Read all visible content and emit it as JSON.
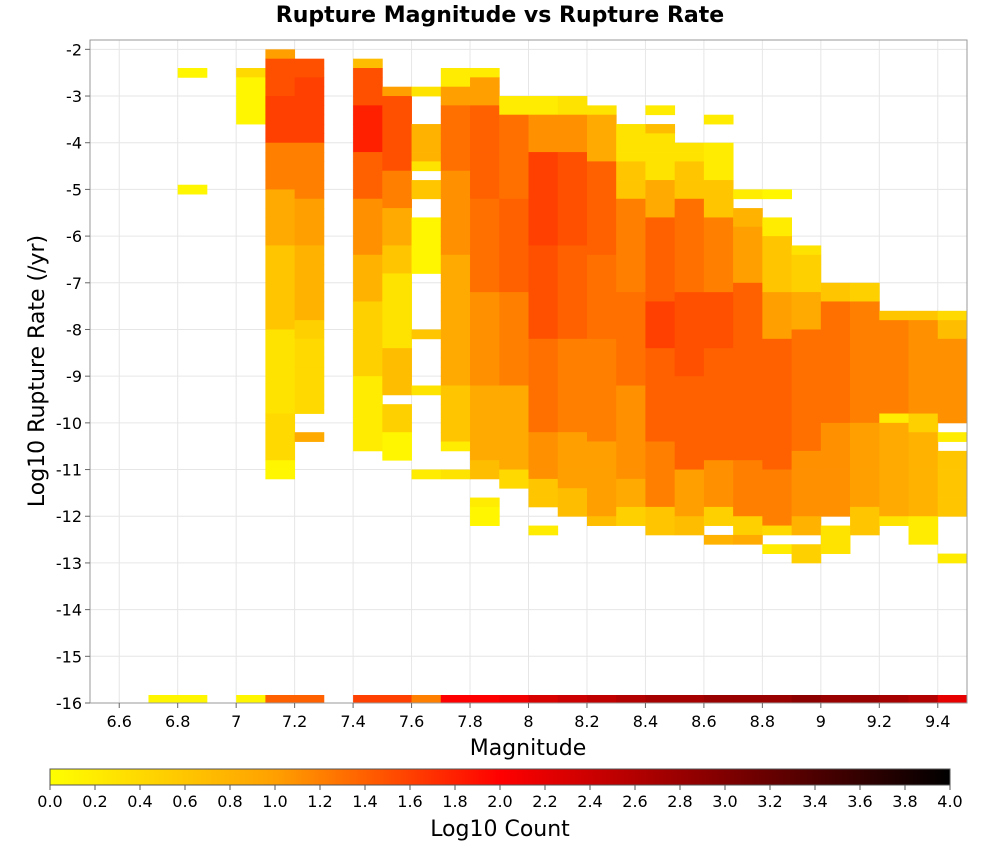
{
  "chart_data": {
    "type": "heatmap",
    "title": "Rupture Magnitude vs Rupture Rate",
    "xlabel": "Magnitude",
    "ylabel": "Log10 Rupture Rate (/yr)",
    "xlim": [
      6.5,
      9.5
    ],
    "ylim": [
      -16,
      -1.8
    ],
    "grid": true,
    "bin_width": 0.1,
    "bin_height": 0.2,
    "x_ticks": [
      6.6,
      6.8,
      7.0,
      7.2,
      7.4,
      7.6,
      7.8,
      8.0,
      8.2,
      8.4,
      8.6,
      8.8,
      9.0,
      9.2,
      9.4
    ],
    "x_tick_labels": [
      "6.6",
      "6.8",
      "7",
      "7.2",
      "7.4",
      "7.6",
      "7.8",
      "8",
      "8.2",
      "8.4",
      "8.6",
      "8.8",
      "9",
      "9.2",
      "9.4"
    ],
    "y_ticks": [
      -2,
      -3,
      -4,
      -5,
      -6,
      -7,
      -8,
      -9,
      -10,
      -11,
      -12,
      -13,
      -14,
      -15,
      -16
    ],
    "y_tick_labels": [
      "-2",
      "-3",
      "-4",
      "-5",
      "-6",
      "-7",
      "-8",
      "-9",
      "-10",
      "-11",
      "-12",
      "-13",
      "-14",
      "-15",
      "-16"
    ],
    "colorbar": {
      "label": "Log10 Count",
      "range": [
        0.0,
        4.0
      ],
      "ticks": [
        "0.0",
        "0.2",
        "0.4",
        "0.6",
        "0.8",
        "1.0",
        "1.2",
        "1.4",
        "1.6",
        "1.8",
        "2.0",
        "2.2",
        "2.4",
        "2.6",
        "2.8",
        "3.0",
        "3.2",
        "3.4",
        "3.6",
        "3.8",
        "4.0"
      ],
      "colors": [
        "#ffff00",
        "#ffa000",
        "#ff0000",
        "#800000",
        "#000000"
      ]
    },
    "bottom_row": {
      "y": -16,
      "cells": [
        {
          "x": 6.75,
          "v": 0.1
        },
        {
          "x": 6.85,
          "v": 0.1
        },
        {
          "x": 7.05,
          "v": 0.1
        },
        {
          "x": 7.15,
          "v": 1.4
        },
        {
          "x": 7.25,
          "v": 1.4
        },
        {
          "x": 7.45,
          "v": 1.6
        },
        {
          "x": 7.55,
          "v": 1.6
        },
        {
          "x": 7.65,
          "v": 1.2
        },
        {
          "x": 7.75,
          "v": 2.0
        },
        {
          "x": 7.85,
          "v": 2.0
        },
        {
          "x": 7.95,
          "v": 2.1
        },
        {
          "x": 8.05,
          "v": 2.3
        },
        {
          "x": 8.15,
          "v": 2.4
        },
        {
          "x": 8.25,
          "v": 2.5
        },
        {
          "x": 8.35,
          "v": 2.6
        },
        {
          "x": 8.45,
          "v": 2.7
        },
        {
          "x": 8.55,
          "v": 2.7
        },
        {
          "x": 8.65,
          "v": 2.8
        },
        {
          "x": 8.75,
          "v": 2.8
        },
        {
          "x": 8.85,
          "v": 2.8
        },
        {
          "x": 8.95,
          "v": 2.9
        },
        {
          "x": 9.05,
          "v": 2.8
        },
        {
          "x": 9.15,
          "v": 2.8
        },
        {
          "x": 9.25,
          "v": 2.7
        },
        {
          "x": 9.35,
          "v": 2.6
        },
        {
          "x": 9.45,
          "v": 2.2
        }
      ]
    },
    "columns": [
      {
        "x": 6.85,
        "ranges": [
          [
            -2.5,
            -2.5,
            0.1
          ],
          [
            -5.0,
            -5.0,
            0.1
          ]
        ]
      },
      {
        "x": 7.05,
        "ranges": [
          [
            -2.5,
            -2.5,
            0.4
          ],
          [
            -3.5,
            -2.7,
            0.1
          ]
        ]
      },
      {
        "x": 7.15,
        "ranges": [
          [
            -2.1,
            -2.1,
            1.0
          ],
          [
            -2.9,
            -2.3,
            1.5
          ],
          [
            -3.9,
            -3.1,
            1.6
          ],
          [
            -4.9,
            -4.1,
            1.2
          ],
          [
            -6.1,
            -5.1,
            0.9
          ],
          [
            -7.9,
            -6.3,
            0.6
          ],
          [
            -9.7,
            -8.1,
            0.3
          ],
          [
            -10.7,
            -9.9,
            0.4
          ],
          [
            -11.1,
            -10.9,
            0.1
          ]
        ]
      },
      {
        "x": 7.25,
        "ranges": [
          [
            -2.5,
            -2.3,
            1.5
          ],
          [
            -3.9,
            -2.7,
            1.6
          ],
          [
            -5.1,
            -4.1,
            1.2
          ],
          [
            -6.1,
            -5.3,
            1.0
          ],
          [
            -7.7,
            -6.3,
            0.8
          ],
          [
            -8.1,
            -7.9,
            0.5
          ],
          [
            -9.7,
            -8.3,
            0.4
          ],
          [
            -10.3,
            -10.3,
            0.9
          ]
        ]
      },
      {
        "x": 7.45,
        "ranges": [
          [
            -2.3,
            -2.3,
            0.7
          ],
          [
            -3.1,
            -2.5,
            1.5
          ],
          [
            -4.1,
            -3.3,
            1.8
          ],
          [
            -5.1,
            -4.3,
            1.4
          ],
          [
            -6.3,
            -5.3,
            1.1
          ],
          [
            -7.3,
            -6.5,
            0.8
          ],
          [
            -8.9,
            -7.5,
            0.5
          ],
          [
            -10.5,
            -9.1,
            0.2
          ]
        ]
      },
      {
        "x": 7.55,
        "ranges": [
          [
            -2.9,
            -2.9,
            1.0
          ],
          [
            -4.5,
            -3.1,
            1.5
          ],
          [
            -5.3,
            -4.7,
            1.2
          ],
          [
            -6.1,
            -5.5,
            0.9
          ],
          [
            -6.7,
            -6.3,
            0.6
          ],
          [
            -8.3,
            -6.9,
            0.3
          ],
          [
            -9.3,
            -8.5,
            0.7
          ],
          [
            -10.1,
            -9.7,
            0.5
          ],
          [
            -10.7,
            -10.3,
            0.1
          ]
        ]
      },
      {
        "x": 7.65,
        "ranges": [
          [
            -2.9,
            -2.9,
            0.3
          ],
          [
            -4.3,
            -3.7,
            0.8
          ],
          [
            -4.5,
            -4.5,
            0.3
          ],
          [
            -5.1,
            -4.9,
            0.6
          ],
          [
            -6.7,
            -5.7,
            0.1
          ],
          [
            -8.1,
            -8.1,
            0.6
          ],
          [
            -9.3,
            -9.3,
            0.3
          ],
          [
            -11.1,
            -11.1,
            0.2
          ]
        ]
      },
      {
        "x": 7.75,
        "ranges": [
          [
            -2.7,
            -2.5,
            0.2
          ],
          [
            -3.1,
            -2.9,
            1.0
          ],
          [
            -4.5,
            -3.3,
            1.3
          ],
          [
            -6.3,
            -4.7,
            1.1
          ],
          [
            -9.1,
            -6.5,
            0.9
          ],
          [
            -10.3,
            -9.3,
            0.6
          ],
          [
            -10.5,
            -10.5,
            0.2
          ],
          [
            -11.1,
            -11.1,
            0.3
          ]
        ]
      },
      {
        "x": 7.85,
        "ranges": [
          [
            -2.5,
            -2.5,
            0.2
          ],
          [
            -3.1,
            -2.7,
            1.0
          ],
          [
            -5.1,
            -3.3,
            1.4
          ],
          [
            -7.1,
            -5.3,
            1.3
          ],
          [
            -9.1,
            -7.3,
            1.1
          ],
          [
            -10.7,
            -9.3,
            0.9
          ],
          [
            -11.1,
            -10.9,
            0.7
          ],
          [
            -11.7,
            -11.7,
            0.2
          ],
          [
            -12.1,
            -11.9,
            0.1
          ]
        ]
      },
      {
        "x": 7.95,
        "ranges": [
          [
            -3.3,
            -3.1,
            0.2
          ],
          [
            -5.1,
            -3.5,
            1.3
          ],
          [
            -7.1,
            -5.3,
            1.4
          ],
          [
            -9.1,
            -7.3,
            1.2
          ],
          [
            -10.9,
            -9.3,
            0.9
          ],
          [
            -11.3,
            -11.1,
            0.4
          ]
        ]
      },
      {
        "x": 8.05,
        "ranges": [
          [
            -3.3,
            -3.1,
            0.2
          ],
          [
            -4.1,
            -3.5,
            1.1
          ],
          [
            -6.1,
            -4.3,
            1.6
          ],
          [
            -8.1,
            -6.3,
            1.5
          ],
          [
            -10.1,
            -8.3,
            1.3
          ],
          [
            -11.1,
            -10.3,
            1.1
          ],
          [
            -11.7,
            -11.3,
            0.6
          ],
          [
            -12.3,
            -12.3,
            0.2
          ]
        ]
      },
      {
        "x": 8.15,
        "ranges": [
          [
            -3.3,
            -3.1,
            0.3
          ],
          [
            -4.1,
            -3.5,
            1.1
          ],
          [
            -6.1,
            -4.3,
            1.5
          ],
          [
            -8.1,
            -6.3,
            1.4
          ],
          [
            -10.1,
            -8.3,
            1.2
          ],
          [
            -11.3,
            -10.3,
            1.0
          ],
          [
            -11.9,
            -11.5,
            0.7
          ]
        ]
      },
      {
        "x": 8.25,
        "ranges": [
          [
            -3.3,
            -3.3,
            0.3
          ],
          [
            -4.3,
            -3.5,
            0.9
          ],
          [
            -6.3,
            -4.5,
            1.4
          ],
          [
            -8.1,
            -6.5,
            1.3
          ],
          [
            -10.3,
            -8.3,
            1.2
          ],
          [
            -11.9,
            -10.5,
            1.0
          ],
          [
            -12.1,
            -12.1,
            0.7
          ]
        ]
      },
      {
        "x": 8.35,
        "ranges": [
          [
            -4.3,
            -3.7,
            0.3
          ],
          [
            -5.1,
            -4.5,
            0.6
          ],
          [
            -7.1,
            -5.3,
            1.2
          ],
          [
            -9.1,
            -7.3,
            1.3
          ],
          [
            -11.1,
            -9.3,
            1.1
          ],
          [
            -11.7,
            -11.3,
            0.9
          ],
          [
            -12.1,
            -11.9,
            0.5
          ]
        ]
      },
      {
        "x": 8.45,
        "ranges": [
          [
            -3.3,
            -3.3,
            0.2
          ],
          [
            -3.7,
            -3.7,
            0.7
          ],
          [
            -4.7,
            -3.9,
            0.3
          ],
          [
            -5.5,
            -4.9,
            0.9
          ],
          [
            -7.3,
            -5.7,
            1.4
          ],
          [
            -8.3,
            -7.5,
            1.6
          ],
          [
            -10.3,
            -8.5,
            1.4
          ],
          [
            -11.7,
            -10.5,
            1.2
          ],
          [
            -12.3,
            -11.9,
            0.6
          ]
        ]
      },
      {
        "x": 8.55,
        "ranges": [
          [
            -4.3,
            -4.1,
            0.3
          ],
          [
            -5.1,
            -4.5,
            0.6
          ],
          [
            -7.1,
            -5.3,
            1.3
          ],
          [
            -8.9,
            -7.3,
            1.5
          ],
          [
            -10.9,
            -9.1,
            1.4
          ],
          [
            -11.9,
            -11.1,
            1.0
          ],
          [
            -12.3,
            -12.1,
            0.7
          ]
        ]
      },
      {
        "x": 8.65,
        "ranges": [
          [
            -3.5,
            -3.5,
            0.2
          ],
          [
            -4.7,
            -4.1,
            0.2
          ],
          [
            -5.5,
            -4.9,
            0.6
          ],
          [
            -7.1,
            -5.7,
            1.2
          ],
          [
            -8.3,
            -7.3,
            1.5
          ],
          [
            -10.7,
            -8.5,
            1.4
          ],
          [
            -11.7,
            -10.9,
            1.1
          ],
          [
            -12.1,
            -11.9,
            0.5
          ],
          [
            -12.5,
            -12.5,
            0.8
          ]
        ]
      },
      {
        "x": 8.75,
        "ranges": [
          [
            -5.1,
            -5.1,
            0.2
          ],
          [
            -5.7,
            -5.5,
            0.8
          ],
          [
            -6.9,
            -5.9,
            1.0
          ],
          [
            -8.1,
            -7.1,
            1.4
          ],
          [
            -10.7,
            -8.3,
            1.4
          ],
          [
            -11.9,
            -10.9,
            1.2
          ],
          [
            -12.3,
            -12.1,
            0.5
          ],
          [
            -12.5,
            -12.5,
            0.9
          ]
        ]
      },
      {
        "x": 8.85,
        "ranges": [
          [
            -5.1,
            -5.1,
            0.1
          ],
          [
            -5.9,
            -5.7,
            0.2
          ],
          [
            -7.1,
            -6.1,
            0.6
          ],
          [
            -8.1,
            -7.3,
            1.0
          ],
          [
            -10.9,
            -8.3,
            1.4
          ],
          [
            -12.1,
            -11.1,
            1.2
          ],
          [
            -12.3,
            -12.3,
            0.4
          ],
          [
            -12.7,
            -12.7,
            0.2
          ]
        ]
      },
      {
        "x": 8.95,
        "ranges": [
          [
            -6.3,
            -6.3,
            0.3
          ],
          [
            -7.1,
            -6.5,
            0.5
          ],
          [
            -7.9,
            -7.3,
            0.9
          ],
          [
            -10.5,
            -8.1,
            1.3
          ],
          [
            -11.9,
            -10.7,
            1.1
          ],
          [
            -12.3,
            -12.1,
            0.8
          ],
          [
            -12.9,
            -12.7,
            0.5
          ]
        ]
      },
      {
        "x": 9.05,
        "ranges": [
          [
            -7.3,
            -7.1,
            0.6
          ],
          [
            -9.9,
            -7.5,
            1.3
          ],
          [
            -11.9,
            -10.1,
            1.1
          ],
          [
            -12.3,
            -12.3,
            0.3
          ],
          [
            -12.7,
            -12.5,
            0.3
          ]
        ]
      },
      {
        "x": 9.15,
        "ranges": [
          [
            -7.3,
            -7.1,
            0.5
          ],
          [
            -9.9,
            -7.5,
            1.2
          ],
          [
            -11.7,
            -10.1,
            1.0
          ],
          [
            -12.3,
            -11.9,
            0.6
          ]
        ]
      },
      {
        "x": 9.25,
        "ranges": [
          [
            -7.7,
            -7.7,
            0.6
          ],
          [
            -9.7,
            -7.9,
            1.2
          ],
          [
            -9.9,
            -9.9,
            0.2
          ],
          [
            -11.9,
            -10.1,
            0.9
          ],
          [
            -12.1,
            -12.1,
            0.3
          ]
        ]
      },
      {
        "x": 9.35,
        "ranges": [
          [
            -7.7,
            -7.7,
            0.6
          ],
          [
            -9.7,
            -7.9,
            1.1
          ],
          [
            -10.1,
            -9.9,
            0.5
          ],
          [
            -11.9,
            -10.3,
            0.8
          ],
          [
            -12.5,
            -12.1,
            0.2
          ]
        ]
      },
      {
        "x": 9.45,
        "ranges": [
          [
            -7.7,
            -7.7,
            0.4
          ],
          [
            -8.1,
            -7.9,
            0.7
          ],
          [
            -9.9,
            -8.3,
            1.1
          ],
          [
            -10.3,
            -10.3,
            0.2
          ],
          [
            -11.9,
            -10.7,
            0.6
          ],
          [
            -12.9,
            -12.9,
            0.2
          ]
        ]
      }
    ]
  }
}
